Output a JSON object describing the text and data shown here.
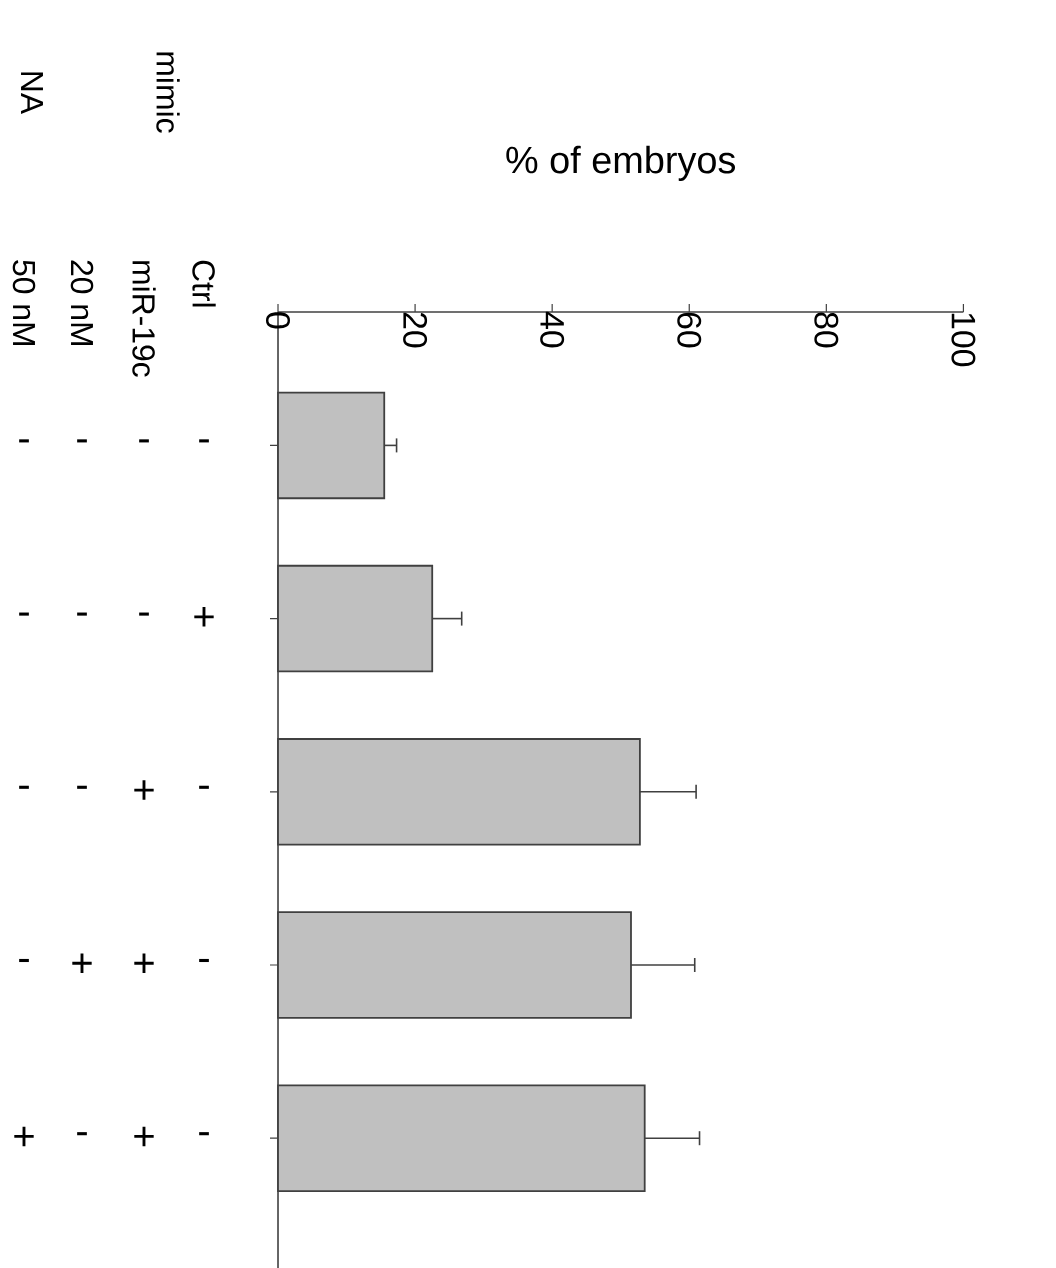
{
  "chart_data": {
    "type": "bar",
    "orientation": "horizontal",
    "xlabel": "% of embryos",
    "categories": [
      null,
      null,
      null,
      null,
      null
    ],
    "values": [
      15.5,
      22.5,
      52.8,
      51.5,
      53.5
    ],
    "errors": [
      [
        15.5,
        17.3
      ],
      [
        22.5,
        26.8
      ],
      [
        52.8,
        61.0
      ],
      [
        51.5,
        60.8
      ],
      [
        53.5,
        61.5
      ]
    ],
    "color": "#c0c0c0",
    "xlim": [
      0,
      100
    ],
    "xticks": [
      0,
      20,
      40,
      60,
      80,
      100
    ],
    "annotations": [
      "mimic",
      "NA",
      "Ctrl",
      "miR-19c",
      "20 nM",
      "50 nM",
      "-",
      "+",
      "-",
      "-",
      "-",
      "-",
      "-",
      "+",
      "+",
      "+",
      "-",
      "-",
      "-",
      "+",
      "-",
      "-",
      "-",
      "-",
      "-",
      "+"
    ]
  }
}
